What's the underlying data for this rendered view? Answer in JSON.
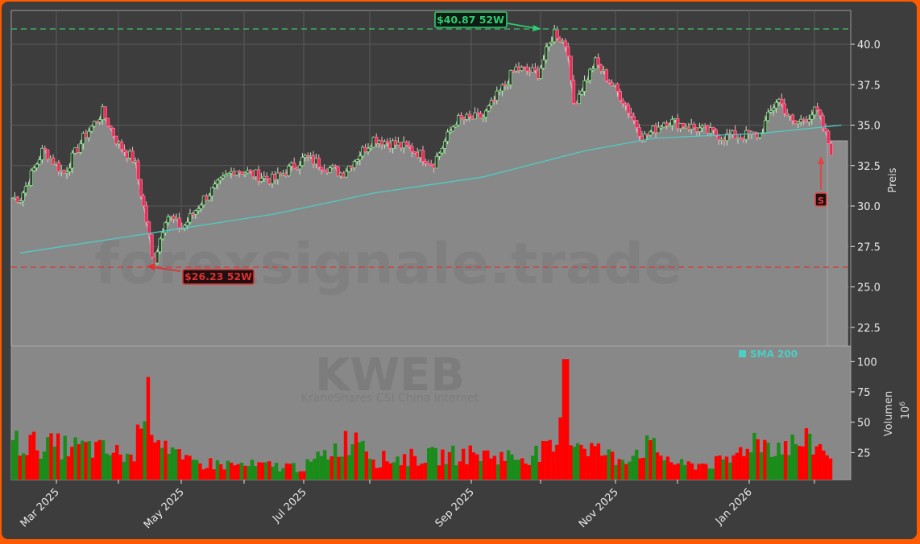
{
  "chart_data": {
    "type": "candlestick",
    "ticker": "KWEB",
    "subtitle": "KraneShares CSI China Internet",
    "watermark": "forexsignale.trade",
    "title": "",
    "xlabel": "",
    "price_panel": {
      "ylabel": "Preis",
      "ylim": [
        21.2,
        41.9
      ],
      "y_ticks": [
        22.5,
        25.0,
        27.5,
        30.0,
        32.5,
        35.0,
        37.5,
        40.0
      ],
      "grid": true,
      "high_52w": {
        "value": 40.87,
        "label": "$40.87 52W",
        "color": "#2ecc71"
      },
      "low_52w": {
        "value": 26.23,
        "label": "$26.23 52W",
        "color": "#e03030"
      },
      "signal": {
        "label": "S",
        "type": "sell",
        "price": 33.2,
        "color": "#e84040"
      },
      "last_price": 34.1,
      "legend": [
        {
          "label": "SMA 200",
          "color": "#4ecdc4"
        }
      ]
    },
    "volume_panel": {
      "ylabel": "Volumen",
      "scale_label": "10^6",
      "y_ticks": [
        25,
        50,
        75,
        100
      ],
      "up_color": "#1a8c1a",
      "down_color": "#ff0000"
    },
    "x_ticks": [
      "Mar 2025",
      "May 2025",
      "Jul 2025",
      "Sep 2025",
      "Nov 2025",
      "Jan 2026"
    ],
    "series": [
      {
        "name": "Close (approx.)",
        "x": [
          "2025-02-10",
          "2025-02-20",
          "2025-03-01",
          "2025-03-10",
          "2025-03-18",
          "2025-03-25",
          "2025-04-01",
          "2025-04-07",
          "2025-04-09",
          "2025-04-15",
          "2025-04-22",
          "2025-05-01",
          "2025-05-15",
          "2025-06-01",
          "2025-06-15",
          "2025-07-01",
          "2025-07-15",
          "2025-08-01",
          "2025-08-10",
          "2025-08-20",
          "2025-09-01",
          "2025-09-15",
          "2025-09-25",
          "2025-10-02",
          "2025-10-08",
          "2025-10-10",
          "2025-10-20",
          "2025-11-01",
          "2025-11-10",
          "2025-11-20",
          "2025-12-01",
          "2025-12-15",
          "2025-12-31",
          "2026-01-08",
          "2026-01-15",
          "2026-01-25",
          "2026-02-01",
          "2026-02-05"
        ],
        "values": [
          30.5,
          33.5,
          32.0,
          34.3,
          35.8,
          33.8,
          32.8,
          28.5,
          26.3,
          29.5,
          28.6,
          30.4,
          32.3,
          31.6,
          33.0,
          32.0,
          34.2,
          33.5,
          32.6,
          35.3,
          35.5,
          38.5,
          38.2,
          40.8,
          39.8,
          36.2,
          38.9,
          36.6,
          34.2,
          35.3,
          34.9,
          34.3,
          34.4,
          36.7,
          35.0,
          35.9,
          33.2,
          34.1
        ]
      },
      {
        "name": "SMA 200",
        "x": [
          "2025-02-10",
          "2025-04-07",
          "2025-06-01",
          "2025-07-15",
          "2025-09-01",
          "2025-10-15",
          "2025-11-15",
          "2026-01-01",
          "2026-02-05"
        ],
        "values": [
          27.1,
          28.3,
          29.5,
          30.8,
          31.8,
          33.4,
          34.2,
          34.5,
          35.0
        ]
      },
      {
        "name": "Volume (10^6)",
        "x": [
          "2025-02",
          "2025-03",
          "2025-04-07",
          "2025-04-09",
          "2025-05",
          "2025-06",
          "2025-07",
          "2025-08",
          "2025-09",
          "2025-10-08",
          "2025-11",
          "2025-12",
          "2026-01",
          "2026-02"
        ],
        "values": [
          35,
          30,
          73,
          72,
          20,
          15,
          14,
          20,
          25,
          102,
          20,
          18,
          38,
          30
        ]
      }
    ]
  }
}
